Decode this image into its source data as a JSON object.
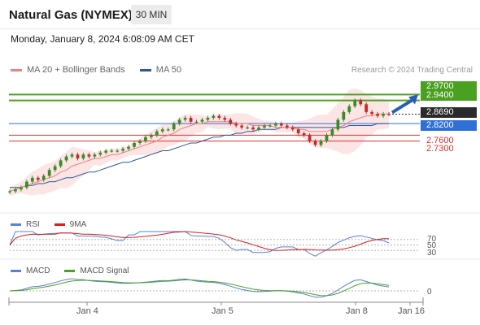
{
  "header": {
    "instrument": "Natural Gas (NYMEX)",
    "timeframe": "30 MIN",
    "datetime": "Monday, January 8, 2024 6:08:09 AM CET"
  },
  "legend": {
    "ma20_label": "MA 20 + Bollinger Bands",
    "ma20_color": "#f08080",
    "ma50_label": "MA 50",
    "ma50_color": "#2a5a9a",
    "watermark": "Research © 2024 Trading Central"
  },
  "price_levels": {
    "resistance_2": {
      "value": "2.9700",
      "color": "#4aa020"
    },
    "resistance_1": {
      "value": "2.9400",
      "color": "#4aa020"
    },
    "last": {
      "value": "2.8690",
      "color": "#2b2b2b"
    },
    "pivot": {
      "value": "2.8200",
      "color": "#2f6fd6"
    },
    "support_1": {
      "value": "2.7600",
      "color": "#e03030"
    },
    "support_2": {
      "value": "2.7300",
      "color": "#e03030"
    }
  },
  "rsi_panel": {
    "rsi_label": "RSI",
    "rsi_color": "#5b7fd6",
    "ma_label": "9MA",
    "ma_color": "#d02020",
    "levels": [
      "70",
      "50",
      "30"
    ]
  },
  "macd_panel": {
    "macd_label": "MACD",
    "macd_color": "#5b7fd6",
    "signal_label": "MACD Signal",
    "signal_color": "#4aa020",
    "zero_label": "0"
  },
  "x_axis": {
    "labels": [
      "Jan 4",
      "Jan 5",
      "Jan 8",
      "Jan 16"
    ]
  },
  "chart_data": {
    "type": "line",
    "title": "Natural Gas (NYMEX)",
    "xlabel": "",
    "ylabel": "",
    "x_ticks": [
      "Jan 4",
      "Jan 5",
      "Jan 8",
      "Jan 16"
    ],
    "ylim": [
      2.43,
      3.06
    ],
    "grid": false,
    "series": [
      {
        "name": "",
        "values": [
          2.47,
          2.48,
          2.49,
          2.52,
          2.54,
          2.53,
          2.55,
          2.58,
          2.6,
          2.63,
          2.65,
          2.66,
          2.64,
          2.66,
          2.65,
          2.66,
          2.67,
          2.68,
          2.68,
          2.68,
          2.69,
          2.7,
          2.72,
          2.73,
          2.75,
          2.76,
          2.78,
          2.79,
          2.79,
          2.82,
          2.84,
          2.85,
          2.83,
          2.83,
          2.84,
          2.85,
          2.86,
          2.85,
          2.84,
          2.82,
          2.81,
          2.8,
          2.8,
          2.79,
          2.8,
          2.81,
          2.81,
          2.82,
          2.81,
          2.8,
          2.79,
          2.77,
          2.76,
          2.73,
          2.71,
          2.73,
          2.76,
          2.79,
          2.84,
          2.88,
          2.91,
          2.94,
          2.92,
          2.88,
          2.87,
          2.86,
          2.87,
          2.869
        ]
      },
      {
        "name": "MA 20",
        "values": [
          2.47,
          2.48,
          2.49,
          2.5,
          2.51,
          2.52,
          2.53,
          2.54,
          2.55,
          2.57,
          2.58,
          2.6,
          2.61,
          2.62,
          2.63,
          2.64,
          2.64,
          2.65,
          2.66,
          2.66,
          2.67,
          2.68,
          2.69,
          2.7,
          2.71,
          2.72,
          2.73,
          2.75,
          2.76,
          2.77,
          2.79,
          2.8,
          2.81,
          2.82,
          2.82,
          2.83,
          2.83,
          2.83,
          2.83,
          2.83,
          2.82,
          2.82,
          2.82,
          2.81,
          2.81,
          2.81,
          2.81,
          2.8,
          2.8,
          2.8,
          2.8,
          2.79,
          2.79,
          2.78,
          2.78,
          2.78,
          2.78,
          2.79,
          2.8,
          2.81,
          2.83,
          2.84,
          2.85,
          2.86,
          2.86,
          2.87,
          2.87,
          2.87
        ]
      },
      {
        "name": "MA 50",
        "values": [
          2.49,
          2.49,
          2.49,
          2.5,
          2.5,
          2.51,
          2.51,
          2.52,
          2.52,
          2.53,
          2.54,
          2.54,
          2.55,
          2.56,
          2.57,
          2.57,
          2.58,
          2.59,
          2.6,
          2.61,
          2.62,
          2.62,
          2.63,
          2.64,
          2.65,
          2.66,
          2.67,
          2.68,
          2.68,
          2.69,
          2.7,
          2.71,
          2.72,
          2.72,
          2.73,
          2.74,
          2.75,
          2.75,
          2.76,
          2.76,
          2.77,
          2.77,
          2.78,
          2.78,
          2.79,
          2.79,
          2.79,
          2.79,
          2.8,
          2.8,
          2.8,
          2.8,
          2.8,
          2.8,
          2.8,
          2.8,
          2.8,
          2.8,
          2.8,
          2.8,
          2.81,
          2.81,
          2.81,
          2.81,
          2.81,
          2.82,
          2.82,
          2.82
        ]
      }
    ]
  }
}
